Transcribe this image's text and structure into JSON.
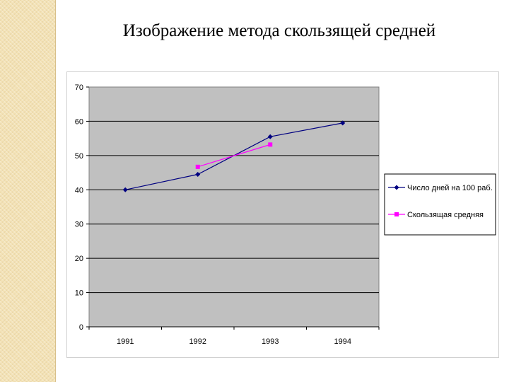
{
  "slide": {
    "title": "Изображение метода скользящей средней"
  },
  "chart_data": {
    "type": "line",
    "title": "",
    "xlabel": "",
    "ylabel": "",
    "categories": [
      "1991",
      "1992",
      "1993",
      "1994"
    ],
    "ylim": [
      0,
      70
    ],
    "yticks": [
      0,
      10,
      20,
      30,
      40,
      50,
      60,
      70
    ],
    "grid": true,
    "legend_position": "right",
    "series": [
      {
        "name": "Число дней на 100 раб.",
        "values": [
          40,
          44.5,
          55.5,
          59.5
        ],
        "color": "#000080",
        "marker": "diamond"
      },
      {
        "name": "Скользящая средняя",
        "values": [
          null,
          46.7,
          53.2,
          null
        ],
        "color": "#ff00ff",
        "marker": "square"
      }
    ],
    "plot_background": "#c0c0c0"
  }
}
